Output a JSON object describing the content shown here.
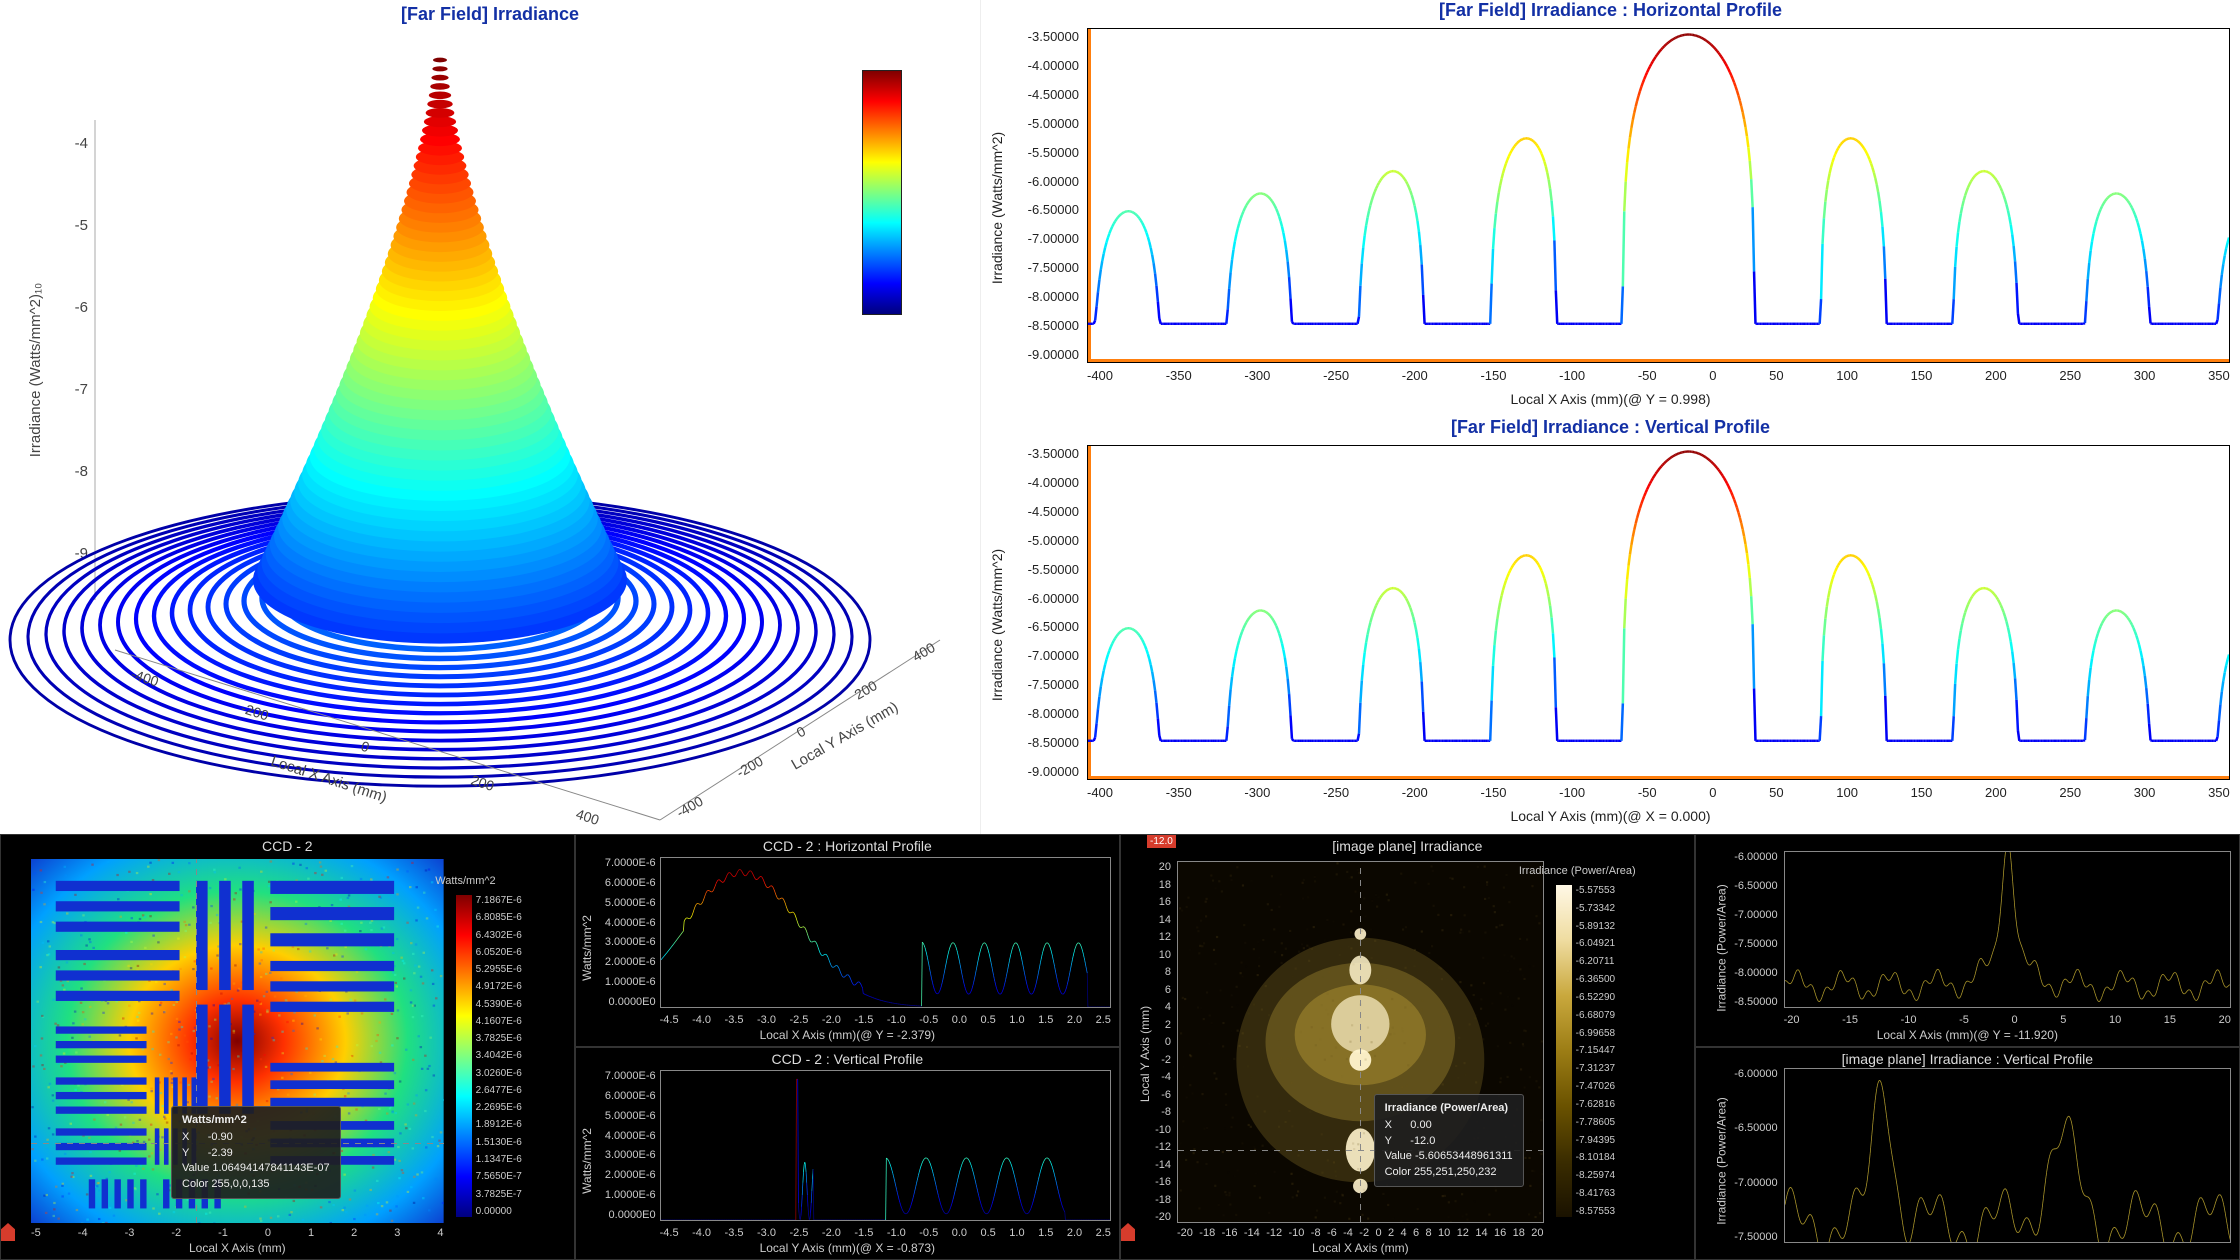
{
  "colors": {
    "title_blue": "#1330a5",
    "axis_accent": "#ff7f0e",
    "jet_stops": [
      "#00007f",
      "#0000ff",
      "#007fff",
      "#00ffff",
      "#7fff7f",
      "#ffff00",
      "#ff7f00",
      "#ff0000",
      "#7f0000"
    ]
  },
  "panel_3d": {
    "title": "[Far Field] Irradiance",
    "z_label": "Irradiance (Watts/mm^2)₁₀",
    "z_ticks": [
      "-4",
      "-5",
      "-6",
      "-7",
      "-8",
      "-9"
    ],
    "x_label": "Local X Axis (mm)",
    "y_label": "Local Y Axis (mm)",
    "axis_ticks": [
      "-400",
      "-200",
      "0",
      "200",
      "400"
    ],
    "colormap": "jet"
  },
  "profile_h": {
    "title": "[Far Field] Irradiance : Horizontal Profile",
    "y_label": "Irradiance (Watts/mm^2)",
    "x_label": "Local X Axis (mm)(@ Y = 0.998)",
    "y_ticks": [
      "-3.50000",
      "-4.00000",
      "-4.50000",
      "-5.00000",
      "-5.50000",
      "-6.00000",
      "-6.50000",
      "-7.00000",
      "-7.50000",
      "-8.00000",
      "-8.50000",
      "-9.00000"
    ],
    "x_ticks": [
      "-400",
      "-350",
      "-300",
      "-250",
      "-200",
      "-150",
      "-100",
      "-50",
      "0",
      "50",
      "100",
      "150",
      "200",
      "250",
      "300",
      "350"
    ],
    "xlim": [
      -400,
      360
    ],
    "ylim": [
      -9.2,
      -3.3
    ],
    "line_gradient": "jet"
  },
  "profile_v": {
    "title": "[Far Field] Irradiance : Vertical Profile",
    "y_label": "Irradiance (Watts/mm^2)",
    "x_label": "Local Y Axis (mm)(@ X = 0.000)",
    "y_ticks": [
      "-3.50000",
      "-4.00000",
      "-4.50000",
      "-5.00000",
      "-5.50000",
      "-6.00000",
      "-6.50000",
      "-7.00000",
      "-7.50000",
      "-8.00000",
      "-8.50000",
      "-9.00000"
    ],
    "x_ticks": [
      "-400",
      "-350",
      "-300",
      "-250",
      "-200",
      "-150",
      "-100",
      "-50",
      "0",
      "50",
      "100",
      "150",
      "200",
      "250",
      "300",
      "350"
    ],
    "xlim": [
      -400,
      360
    ],
    "ylim": [
      -9.2,
      -3.3
    ],
    "line_gradient": "jet"
  },
  "ccd": {
    "title": "CCD - 2",
    "units_label": "Watts/mm^2",
    "x_label": "Local X Axis (mm)",
    "x_ticks": [
      "-5",
      "-4",
      "-3",
      "-2",
      "-1",
      "0",
      "1",
      "2",
      "3",
      "4"
    ],
    "cbar_labels": [
      "7.1867E-6",
      "6.8085E-6",
      "6.4302E-6",
      "6.0520E-6",
      "5.2955E-6",
      "4.9172E-6",
      "4.5390E-6",
      "4.1607E-6",
      "3.7825E-6",
      "3.4042E-6",
      "3.0260E-6",
      "2.6477E-6",
      "2.2695E-6",
      "1.8912E-6",
      "1.5130E-6",
      "1.1347E-6",
      "7.5650E-7",
      "3.7825E-7",
      "0.00000"
    ],
    "tooltip": {
      "header": "Watts/mm^2",
      "X": "-0.90",
      "Y": "-2.39",
      "Value": "1.06494147841143E-07",
      "Color": "255,0,0,135"
    },
    "sub_h": {
      "title": "CCD - 2 : Horizontal Profile",
      "y_ticks": [
        "7.0000E-6",
        "6.0000E-6",
        "5.0000E-6",
        "4.0000E-6",
        "3.0000E-6",
        "2.0000E-6",
        "1.0000E-6",
        "0.0000E0"
      ],
      "x_ticks": [
        "-4.5",
        "-4.0",
        "-3.5",
        "-3.0",
        "-2.5",
        "-2.0",
        "-1.5",
        "-1.0",
        "-0.5",
        "0.0",
        "0.5",
        "1.0",
        "1.5",
        "2.0",
        "2.5"
      ],
      "y_label": "Watts/mm^2",
      "x_label": "Local X Axis (mm)(@ Y = -2.379)"
    },
    "sub_v": {
      "title": "CCD - 2 : Vertical Profile",
      "y_ticks": [
        "7.0000E-6",
        "6.0000E-6",
        "5.0000E-6",
        "4.0000E-6",
        "3.0000E-6",
        "2.0000E-6",
        "1.0000E-6",
        "0.0000E0"
      ],
      "x_ticks": [
        "-4.5",
        "-4.0",
        "-3.5",
        "-3.0",
        "-2.5",
        "-2.0",
        "-1.5",
        "-1.0",
        "-0.5",
        "0.0",
        "0.5",
        "1.0",
        "1.5",
        "2.0",
        "2.5"
      ],
      "y_label": "Watts/mm^2",
      "x_label": "Local Y Axis (mm)(@ X = -0.873)"
    }
  },
  "image_plane": {
    "title": "[image plane] Irradiance",
    "cbar_title": "Irradiance (Power/Area)",
    "x_label": "Local X Axis (mm)",
    "y_label": "Local Y Axis (mm)",
    "x_ticks": [
      "-20",
      "-18",
      "-16",
      "-14",
      "-12",
      "-10",
      "-8",
      "-6",
      "-4",
      "-2",
      "0",
      "2",
      "4",
      "6",
      "8",
      "10",
      "12",
      "14",
      "16",
      "18",
      "20"
    ],
    "y_ticks": [
      "20",
      "18",
      "16",
      "14",
      "12",
      "10",
      "8",
      "6",
      "4",
      "2",
      "0",
      "-2",
      "-4",
      "-6",
      "-8",
      "-10",
      "-12",
      "-14",
      "-16",
      "-18",
      "-20"
    ],
    "cbar_labels": [
      "-5.57553",
      "-5.73342",
      "-5.89132",
      "-6.04921",
      "-6.20711",
      "-6.36500",
      "-6.52290",
      "-6.68079",
      "-6.99658",
      "-7.15447",
      "-7.31237",
      "-7.47026",
      "-7.62816",
      "-7.78605",
      "-7.94395",
      "-8.10184",
      "-8.25974",
      "-8.41763",
      "-8.57553"
    ],
    "tooltip": {
      "header": "Irradiance (Power/Area)",
      "X": "0.00",
      "Y": "-12.0",
      "Value": "-5.60653448961311",
      "Color": "255,251,250,232"
    },
    "marker_value": "-12.0",
    "sub_h": {
      "title": "",
      "y_ticks": [
        "-6.00000",
        "-6.50000",
        "-7.00000",
        "-7.50000",
        "-8.00000",
        "-8.50000"
      ],
      "y_label": "Irradiance (Power/Area)",
      "x_label": "Local X Axis (mm)(@ Y = -11.920)",
      "x_ticks": [
        "-20",
        "-15",
        "-10",
        "-5",
        "0",
        "5",
        "10",
        "15",
        "20"
      ]
    },
    "sub_v": {
      "title": "[image plane] Irradiance : Vertical Profile",
      "y_ticks": [
        "-6.00000",
        "-6.50000",
        "-7.00000",
        "-7.50000"
      ],
      "y_label": "Irradiance (Power/Area)"
    }
  }
}
